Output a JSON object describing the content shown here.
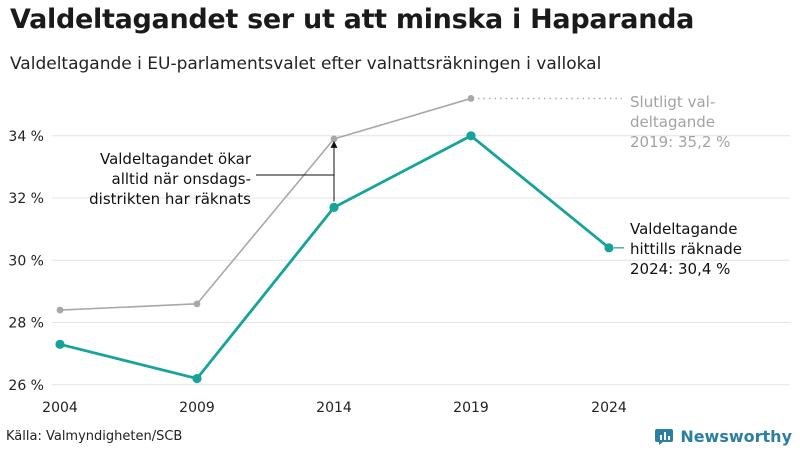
{
  "header": {
    "title": "Valdeltagandet ser ut att minska i Haparanda",
    "subtitle": "Valdeltagande i EU-parlamentsvalet efter valnattsräkningen i vallokal"
  },
  "chart_data": {
    "type": "line",
    "x": [
      "2004",
      "2009",
      "2014",
      "2019",
      "2024"
    ],
    "series": [
      {
        "values": [
          28.4,
          28.6,
          33.9,
          35.2,
          null
        ],
        "color": "#a8a8a8"
      },
      {
        "values": [
          27.3,
          26.2,
          31.7,
          34.0,
          30.4
        ],
        "color": "#16a39a"
      }
    ],
    "yticks": [
      26,
      28,
      30,
      32,
      34
    ],
    "ytick_labels": [
      "26 %",
      "28 %",
      "30 %",
      "32 %",
      "34 %"
    ],
    "ylim": [
      25.8,
      35.6
    ],
    "grid": true,
    "annotations": {
      "final_2019": [
        "Slutligt val-",
        "deltagande",
        "2019: 35,2 %"
      ],
      "current_2024": [
        "Valdeltagande",
        "hittills räknade",
        "2024: 30,4 %"
      ],
      "wednesday": [
        "Valdeltagandet ökar",
        "alltid när onsdags-",
        "distrikten har räknats"
      ]
    }
  },
  "footer": {
    "source": "Källa: Valmyndigheten/SCB",
    "brand": "Newsworthy",
    "brand_color": "#2c7fa3"
  }
}
